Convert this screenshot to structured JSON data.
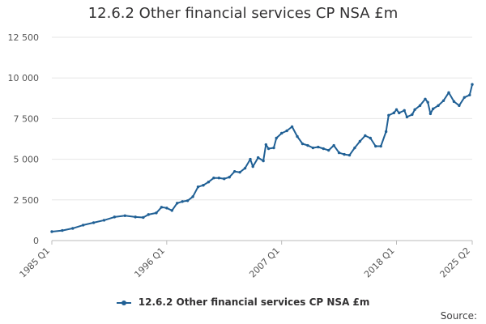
{
  "chart_data": {
    "type": "line",
    "title": "12.6.2 Other financial services CP NSA £m",
    "xlabel": "",
    "ylabel": "",
    "ylim": [
      0,
      12500
    ],
    "yticks": [
      0,
      2500,
      5000,
      7500,
      10000,
      12500
    ],
    "ytick_labels": [
      "0",
      "2 500",
      "5 000",
      "7 500",
      "10 000",
      "12 500"
    ],
    "x_range": [
      "1985 Q1",
      "2025 Q2"
    ],
    "xtick_labels": [
      "1985 Q1",
      "1996 Q1",
      "2007 Q1",
      "2018 Q1",
      "2025 Q2"
    ],
    "grid": "horizontal",
    "legend_position": "bottom",
    "series": [
      {
        "name": "12.6.2 Other financial services CP NSA £m",
        "color": "#206095",
        "points": [
          [
            "1985 Q1",
            550
          ],
          [
            "1986 Q1",
            620
          ],
          [
            "1987 Q1",
            750
          ],
          [
            "1988 Q1",
            950
          ],
          [
            "1989 Q1",
            1100
          ],
          [
            "1990 Q1",
            1250
          ],
          [
            "1991 Q1",
            1450
          ],
          [
            "1992 Q1",
            1530
          ],
          [
            "1993 Q1",
            1450
          ],
          [
            "1993 Q4",
            1420
          ],
          [
            "1994 Q2",
            1600
          ],
          [
            "1995 Q1",
            1700
          ],
          [
            "1995 Q3",
            2050
          ],
          [
            "1996 Q1",
            2000
          ],
          [
            "1996 Q3",
            1850
          ],
          [
            "1997 Q1",
            2300
          ],
          [
            "1997 Q3",
            2400
          ],
          [
            "1998 Q1",
            2450
          ],
          [
            "1998 Q3",
            2700
          ],
          [
            "1999 Q1",
            3300
          ],
          [
            "1999 Q3",
            3400
          ],
          [
            "2000 Q1",
            3600
          ],
          [
            "2000 Q3",
            3850
          ],
          [
            "2001 Q1",
            3850
          ],
          [
            "2001 Q3",
            3800
          ],
          [
            "2002 Q1",
            3900
          ],
          [
            "2002 Q3",
            4250
          ],
          [
            "2003 Q1",
            4200
          ],
          [
            "2003 Q3",
            4450
          ],
          [
            "2004 Q1",
            5000
          ],
          [
            "2004 Q2",
            4550
          ],
          [
            "2004 Q4",
            5100
          ],
          [
            "2005 Q2",
            4900
          ],
          [
            "2005 Q3",
            5900
          ],
          [
            "2005 Q4",
            5650
          ],
          [
            "2006 Q2",
            5700
          ],
          [
            "2006 Q3",
            6300
          ],
          [
            "2007 Q1",
            6600
          ],
          [
            "2007 Q3",
            6750
          ],
          [
            "2008 Q1",
            7000
          ],
          [
            "2008 Q3",
            6400
          ],
          [
            "2009 Q1",
            5950
          ],
          [
            "2009 Q3",
            5850
          ],
          [
            "2010 Q1",
            5700
          ],
          [
            "2010 Q3",
            5750
          ],
          [
            "2011 Q1",
            5650
          ],
          [
            "2011 Q3",
            5550
          ],
          [
            "2012 Q1",
            5850
          ],
          [
            "2012 Q3",
            5400
          ],
          [
            "2013 Q1",
            5300
          ],
          [
            "2013 Q3",
            5250
          ],
          [
            "2014 Q1",
            5700
          ],
          [
            "2014 Q3",
            6100
          ],
          [
            "2015 Q1",
            6450
          ],
          [
            "2015 Q3",
            6300
          ],
          [
            "2016 Q1",
            5800
          ],
          [
            "2016 Q3",
            5800
          ],
          [
            "2017 Q1",
            6700
          ],
          [
            "2017 Q2",
            7700
          ],
          [
            "2017 Q4",
            7850
          ],
          [
            "2018 Q1",
            8050
          ],
          [
            "2018 Q2",
            7850
          ],
          [
            "2018 Q4",
            8000
          ],
          [
            "2019 Q1",
            7600
          ],
          [
            "2019 Q3",
            7750
          ],
          [
            "2019 Q4",
            8050
          ],
          [
            "2020 Q2",
            8300
          ],
          [
            "2020 Q4",
            8700
          ],
          [
            "2021 Q1",
            8500
          ],
          [
            "2021 Q2",
            7800
          ],
          [
            "2021 Q3",
            8100
          ],
          [
            "2022 Q1",
            8300
          ],
          [
            "2022 Q3",
            8600
          ],
          [
            "2023 Q1",
            9100
          ],
          [
            "2023 Q3",
            8550
          ],
          [
            "2024 Q1",
            8300
          ],
          [
            "2024 Q3",
            8800
          ],
          [
            "2025 Q1",
            8950
          ],
          [
            "2025 Q2",
            9600
          ]
        ]
      }
    ],
    "source_label": "Source:"
  }
}
